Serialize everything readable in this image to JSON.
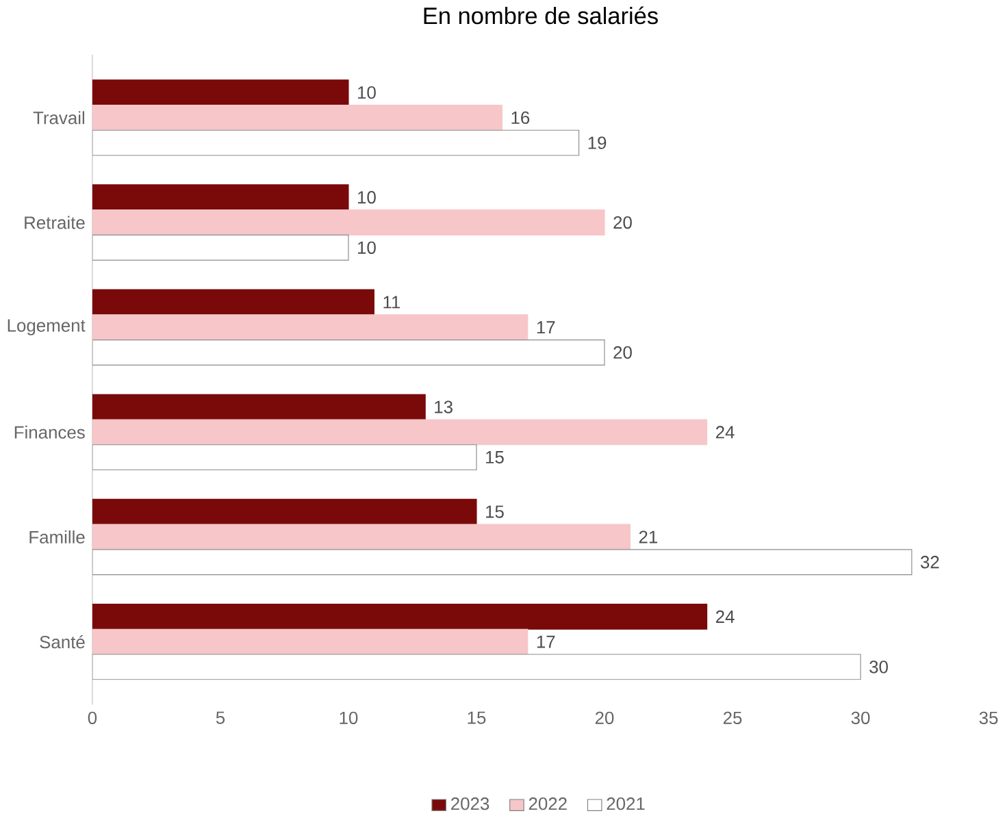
{
  "chart_data": {
    "type": "bar",
    "orientation": "horizontal",
    "title": "En nombre de salariés",
    "categories": [
      "Travail",
      "Retraite",
      "Logement",
      "Finances",
      "Famille",
      "Santé"
    ],
    "series": [
      {
        "name": "2023",
        "color": "#7a0a0a",
        "values": [
          10,
          10,
          11,
          13,
          15,
          24
        ]
      },
      {
        "name": "2022",
        "color": "#f7c6c8",
        "values": [
          16,
          20,
          17,
          24,
          21,
          17
        ]
      },
      {
        "name": "2021",
        "color": "#ffffff",
        "values": [
          19,
          10,
          20,
          15,
          32,
          30
        ]
      }
    ],
    "xlim": [
      0,
      35
    ],
    "xticks": [
      0,
      5,
      10,
      15,
      20,
      25,
      30,
      35
    ],
    "data_labels": true,
    "legend": "bottom",
    "grid": false
  }
}
